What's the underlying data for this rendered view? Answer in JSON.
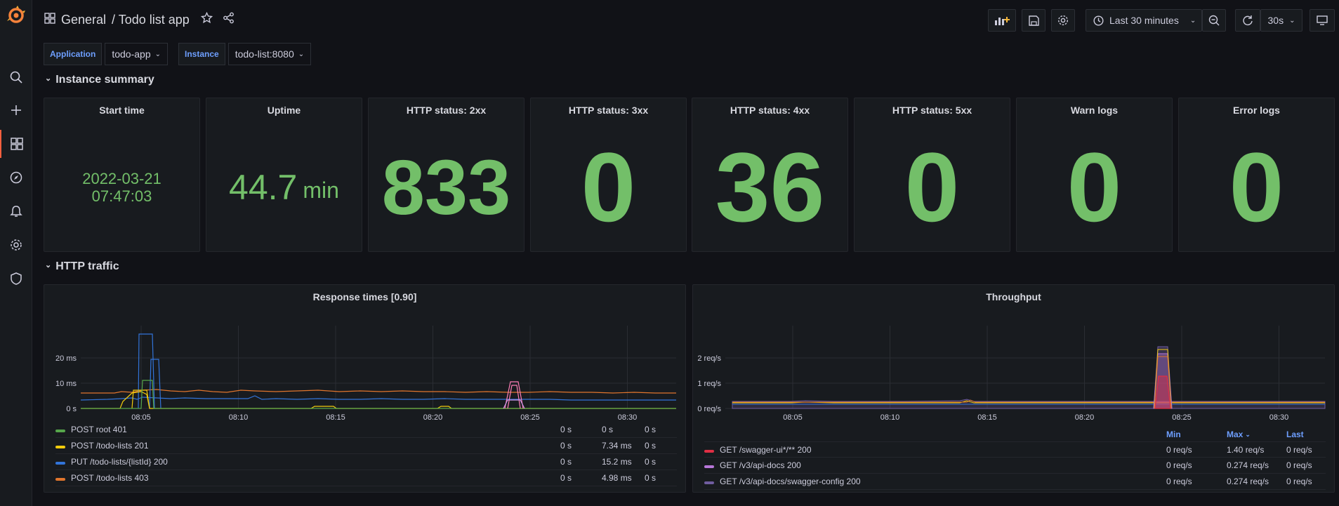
{
  "colors": {
    "stat_green": "#73bf69",
    "accent_blue": "#6e9fff",
    "grafana_orange": "#f55f3e"
  },
  "header": {
    "section": "General",
    "title": "/ Todo list app",
    "time_range": "Last 30 minutes",
    "refresh": "30s"
  },
  "variables": [
    {
      "label": "Application",
      "value": "todo-app"
    },
    {
      "label": "Instance",
      "value": "todo-list:8080"
    }
  ],
  "rows": {
    "summary": "Instance summary",
    "traffic": "HTTP traffic"
  },
  "stats": [
    {
      "title": "Start time",
      "value_line1": "2022-03-21",
      "value_line2": "07:47:03"
    },
    {
      "title": "Uptime",
      "value": "44.7",
      "unit": "min"
    },
    {
      "title": "HTTP status: 2xx",
      "value": "833"
    },
    {
      "title": "HTTP status: 3xx",
      "value": "0"
    },
    {
      "title": "HTTP status: 4xx",
      "value": "36"
    },
    {
      "title": "HTTP status: 5xx",
      "value": "0"
    },
    {
      "title": "Warn logs",
      "value": "0"
    },
    {
      "title": "Error logs",
      "value": "0"
    }
  ],
  "chart_data": [
    {
      "type": "line",
      "title": "Response times [0.90]",
      "x_ticks": [
        "08:05",
        "08:10",
        "08:15",
        "08:20",
        "08:25",
        "08:30"
      ],
      "y_ticks": [
        "0 s",
        "10 ms",
        "20 ms"
      ],
      "ylim": [
        0,
        0.027
      ],
      "series": [
        {
          "name": "POST root 401",
          "color": "#56a64b",
          "min": "0 s",
          "max": "0 s",
          "last": "0 s"
        },
        {
          "name": "POST /todo-lists 201",
          "color": "#f2cc0c",
          "min": "0 s",
          "max": "7.34 ms",
          "last": "0 s"
        },
        {
          "name": "PUT /todo-lists/{listId} 200",
          "color": "#3274d9",
          "min": "0 s",
          "max": "15.2 ms",
          "last": "0 s"
        },
        {
          "name": "POST /todo-lists 403",
          "color": "#e0752d",
          "min": "0 s",
          "max": "4.98 ms",
          "last": "0 s"
        }
      ]
    },
    {
      "type": "area",
      "title": "Throughput",
      "x_ticks": [
        "08:05",
        "08:10",
        "08:15",
        "08:20",
        "08:25",
        "08:30"
      ],
      "y_ticks": [
        "0 req/s",
        "1 req/s",
        "2 req/s"
      ],
      "ylim": [
        0,
        2.8
      ],
      "legend_headers": {
        "min": "Min",
        "max": "Max",
        "last": "Last"
      },
      "series": [
        {
          "name": "GET /swagger-ui*/** 200",
          "color": "#e02f44",
          "min": "0 req/s",
          "max": "1.40 req/s",
          "last": "0 req/s"
        },
        {
          "name": "GET /v3/api-docs 200",
          "color": "#b877d9",
          "min": "0 req/s",
          "max": "0.274 req/s",
          "last": "0 req/s"
        },
        {
          "name": "GET /v3/api-docs/swagger-config 200",
          "color": "#705da0",
          "min": "0 req/s",
          "max": "0.274 req/s",
          "last": "0 req/s"
        }
      ]
    }
  ]
}
